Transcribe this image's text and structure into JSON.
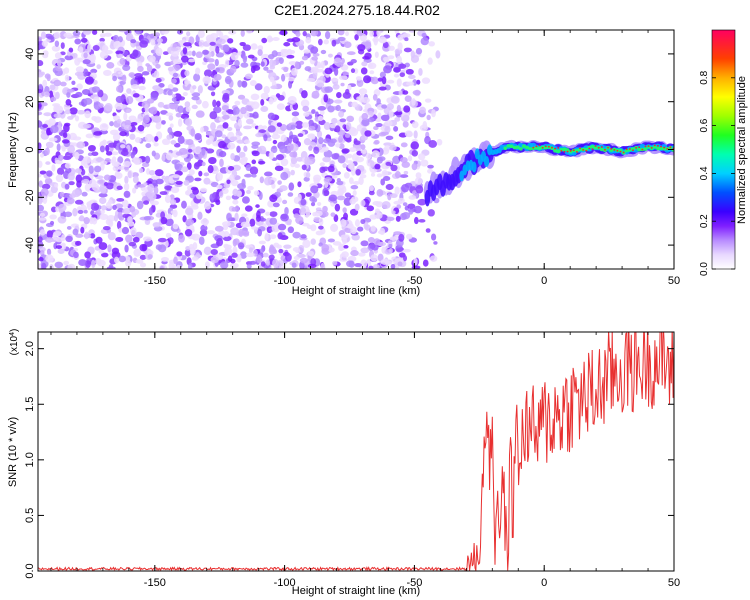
{
  "title": "C2E1.2024.275.18.44.R02",
  "chart_data": [
    {
      "type": "heatmap",
      "xlabel": "Height of straight line (km)",
      "ylabel": "Frequency (Hz)",
      "xlim": [
        -195,
        50
      ],
      "ylim": [
        -50,
        50
      ],
      "xticks": [
        -150,
        -100,
        -50,
        0,
        50
      ],
      "yticks": [
        -40,
        -20,
        0,
        20,
        40
      ],
      "colorbar": {
        "label": "Normalized spectral amplitude",
        "range": [
          0,
          1
        ],
        "ticks": [
          0.0,
          0.2,
          0.4,
          0.6,
          0.8
        ]
      },
      "ridge": {
        "x": [
          -45,
          -40,
          -35,
          -30,
          -25,
          -20,
          -15,
          -10,
          -5,
          0,
          5,
          10,
          15,
          20,
          25,
          30,
          35,
          40,
          45,
          50
        ],
        "freq": [
          -18,
          -15,
          -11,
          -7,
          -4,
          -1,
          1,
          1,
          1,
          1,
          0,
          -1,
          0,
          1,
          0,
          -1,
          0,
          1,
          1,
          0
        ]
      }
    },
    {
      "type": "line",
      "xlabel": "Height of straight line (km)",
      "ylabel": "SNR (10 * v/v)",
      "y_multiplier": "(x10",
      "y_multiplier_exp": "4",
      "y_multiplier_close": ")",
      "xlim": [
        -195,
        50
      ],
      "ylim": [
        0,
        2.15
      ],
      "xticks": [
        -150,
        -100,
        -50,
        0,
        50
      ],
      "yticks": [
        0.0,
        0.5,
        1.0,
        1.5,
        2.0
      ],
      "yticklabels": [
        "0.0",
        "0.5",
        "1.0",
        "1.5",
        "2.0"
      ],
      "color": "#e83030",
      "series": [
        {
          "x": [
            -195,
            -150,
            -100,
            -50,
            -30,
            -27,
            -25,
            -24,
            -23,
            -22,
            -21,
            -20,
            -19,
            -18,
            -17,
            -16,
            -15,
            -14,
            -13,
            -12,
            -11,
            -10,
            -8,
            -5,
            -2,
            0,
            5,
            10,
            15,
            20,
            25,
            30,
            35,
            40,
            45,
            50
          ],
          "values": [
            0.02,
            0.02,
            0.02,
            0.02,
            0.02,
            0.08,
            0.2,
            0.6,
            1.2,
            1.45,
            0.9,
            1.35,
            0.2,
            0.8,
            0.3,
            0.9,
            0.4,
            0.1,
            1.1,
            0.4,
            1.45,
            0.9,
            1.3,
            1.3,
            1.2,
            1.35,
            1.4,
            1.5,
            1.55,
            1.6,
            1.75,
            1.8,
            1.85,
            1.9,
            1.9,
            1.8
          ]
        }
      ]
    }
  ]
}
